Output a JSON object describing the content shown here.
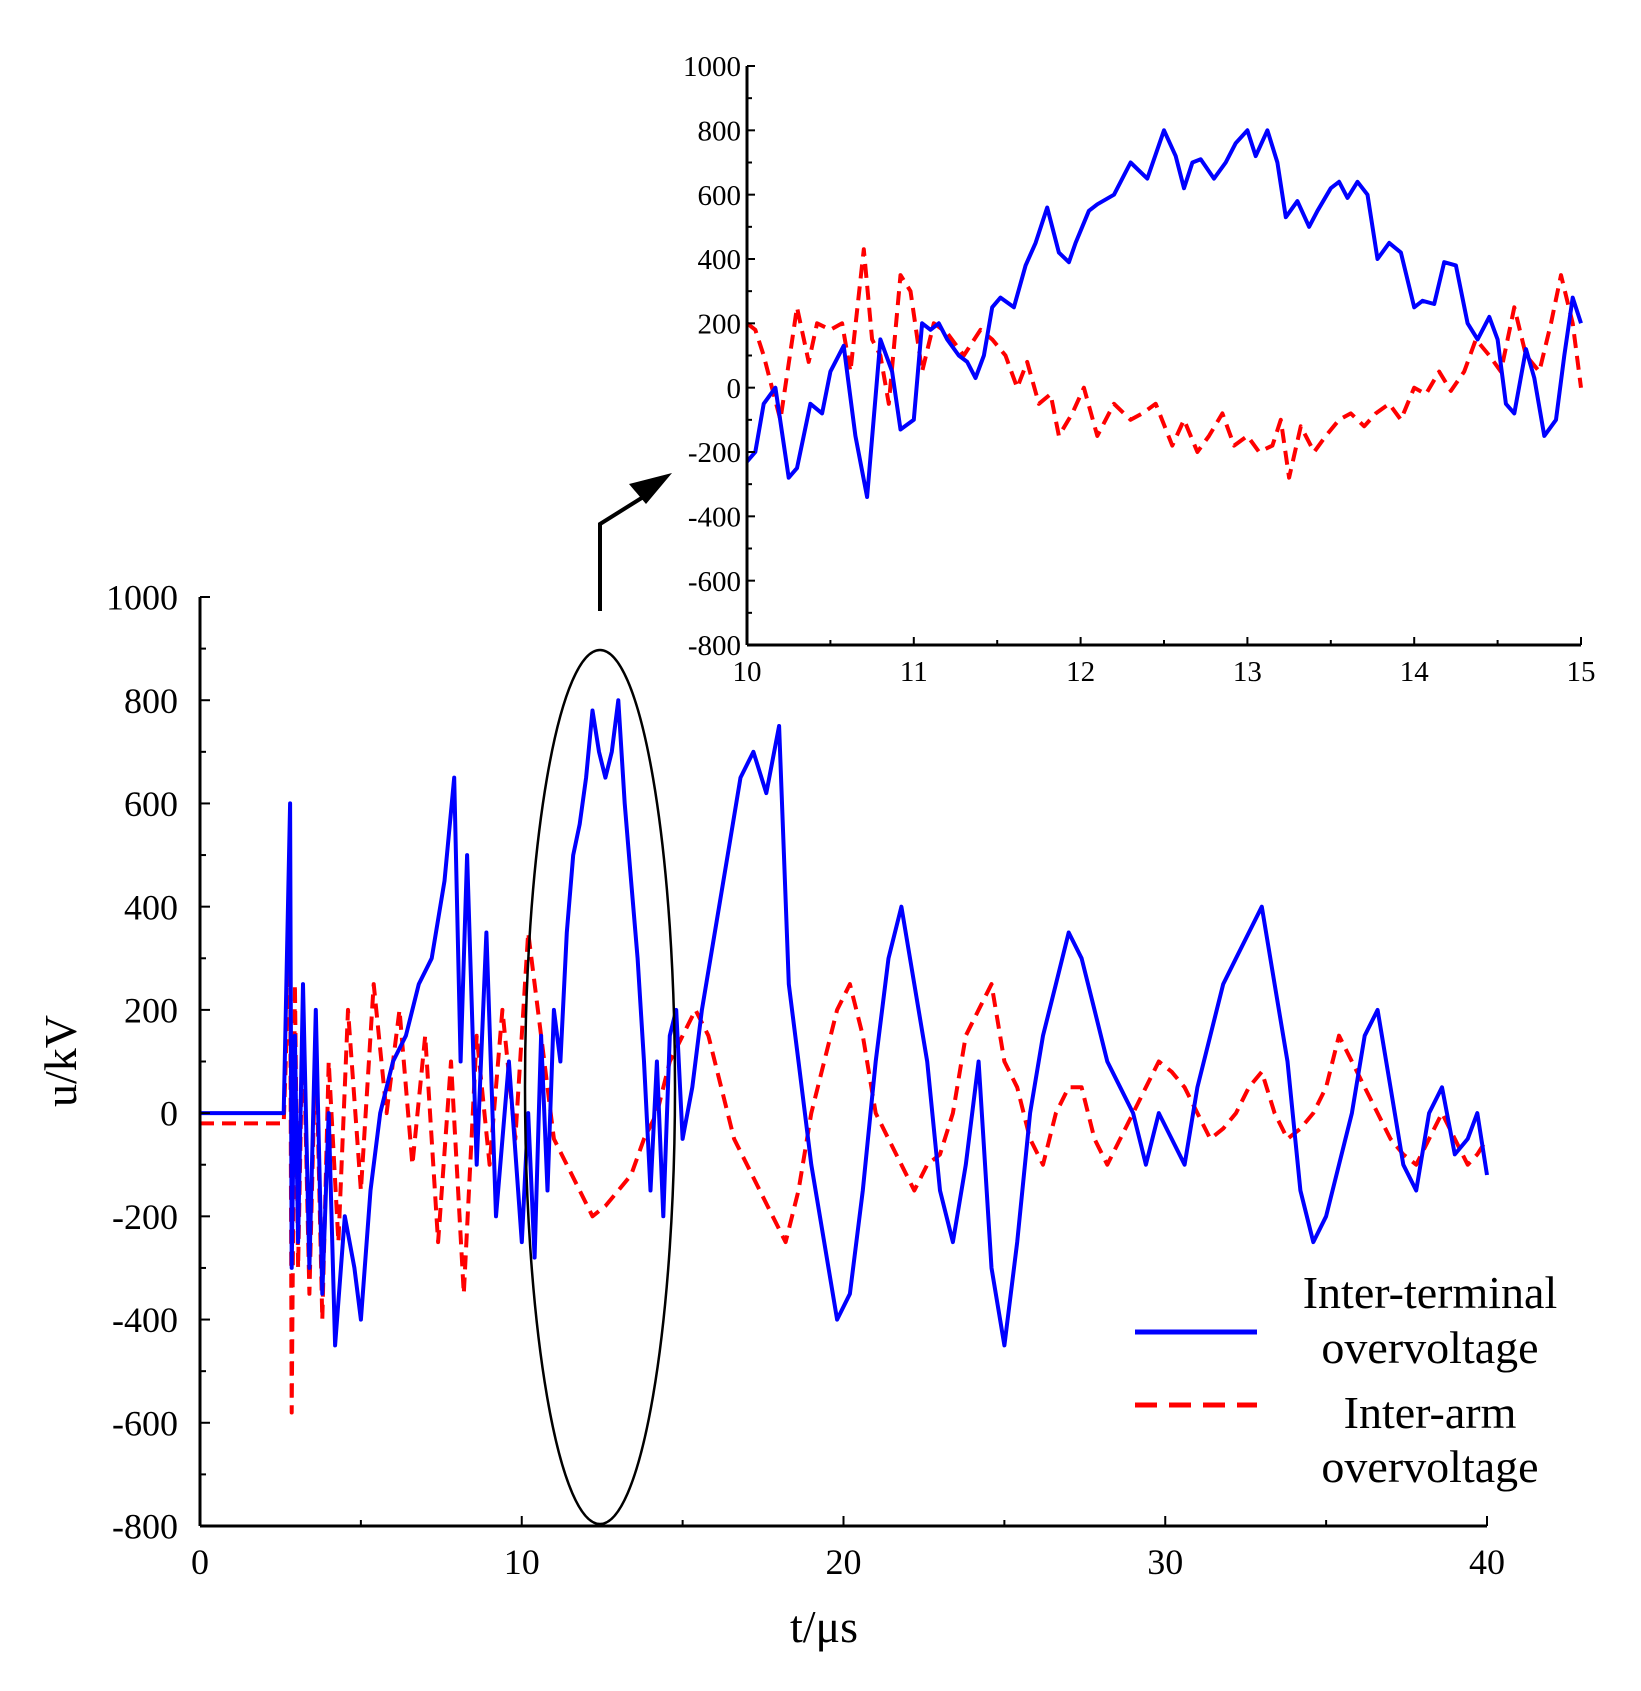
{
  "chart_data": [
    {
      "id": "main",
      "type": "line",
      "xlabel": "t/μs",
      "ylabel": "u/kV",
      "xlim": [
        0,
        40
      ],
      "ylim": [
        -800,
        1000
      ],
      "xticks": [
        "0",
        "10",
        "20",
        "30",
        "40"
      ],
      "yticks": [
        "1000",
        "800",
        "600",
        "400",
        "200",
        "0",
        "-200",
        "-400",
        "-600",
        "-800"
      ],
      "xtick_values": [
        0,
        10,
        20,
        30,
        40
      ],
      "ytick_values": [
        1000,
        800,
        600,
        400,
        200,
        0,
        -200,
        -400,
        -600,
        -800
      ],
      "legend_placement": "bottom-right",
      "series": [
        {
          "name": "Inter-terminal overvoltage",
          "style": "solid",
          "color": "#0000ff",
          "x": [
            0,
            2.6,
            2.8,
            2.85,
            2.95,
            3.05,
            3.2,
            3.4,
            3.6,
            3.8,
            4.0,
            4.2,
            4.5,
            4.8,
            5.0,
            5.3,
            5.6,
            6.0,
            6.4,
            6.8,
            7.2,
            7.6,
            7.9,
            8.1,
            8.3,
            8.6,
            8.9,
            9.2,
            9.6,
            10.0,
            10.2,
            10.4,
            10.6,
            10.8,
            11.0,
            11.2,
            11.4,
            11.6,
            11.8,
            12.0,
            12.2,
            12.4,
            12.6,
            12.8,
            13.0,
            13.2,
            13.4,
            13.6,
            13.8,
            14.0,
            14.2,
            14.4,
            14.6,
            14.8,
            15.0,
            15.3,
            15.6,
            16.0,
            16.4,
            16.8,
            17.2,
            17.6,
            18.0,
            18.3,
            18.6,
            19.0,
            19.4,
            19.8,
            20.2,
            20.6,
            21.0,
            21.4,
            21.8,
            22.2,
            22.6,
            23.0,
            23.4,
            23.8,
            24.2,
            24.6,
            25.0,
            25.4,
            25.8,
            26.2,
            26.6,
            27.0,
            27.4,
            27.8,
            28.2,
            28.6,
            29.0,
            29.4,
            29.8,
            30.2,
            30.6,
            31.0,
            31.4,
            31.8,
            32.2,
            32.6,
            33.0,
            33.4,
            33.8,
            34.2,
            34.6,
            35.0,
            35.4,
            35.8,
            36.2,
            36.6,
            37.0,
            37.4,
            37.8,
            38.2,
            38.6,
            39.0,
            39.4,
            39.7,
            40.0
          ],
          "y": [
            0,
            0,
            600,
            -300,
            150,
            -250,
            250,
            -300,
            200,
            -350,
            0,
            -450,
            -200,
            -300,
            -400,
            -150,
            0,
            100,
            150,
            250,
            300,
            450,
            650,
            100,
            500,
            -100,
            350,
            -200,
            100,
            -250,
            0,
            -280,
            150,
            -150,
            200,
            100,
            350,
            500,
            560,
            650,
            780,
            700,
            650,
            700,
            800,
            600,
            450,
            300,
            100,
            -150,
            100,
            -200,
            150,
            200,
            -50,
            50,
            200,
            350,
            500,
            650,
            700,
            620,
            750,
            250,
            100,
            -100,
            -250,
            -400,
            -350,
            -150,
            100,
            300,
            400,
            250,
            100,
            -150,
            -250,
            -100,
            100,
            -300,
            -450,
            -250,
            0,
            150,
            250,
            350,
            300,
            200,
            100,
            50,
            0,
            -100,
            0,
            -50,
            -100,
            50,
            150,
            250,
            300,
            350,
            400,
            250,
            100,
            -150,
            -250,
            -200,
            -100,
            0,
            150,
            200,
            50,
            -100,
            -150,
            0,
            50,
            -80,
            -50,
            0,
            -120
          ]
        },
        {
          "name": "Inter-arm overvoltage",
          "style": "dashed",
          "color": "#ff0000",
          "x": [
            0,
            2.6,
            2.8,
            2.85,
            2.95,
            3.05,
            3.2,
            3.4,
            3.6,
            3.8,
            4.0,
            4.3,
            4.6,
            5.0,
            5.4,
            5.8,
            6.2,
            6.6,
            7.0,
            7.4,
            7.8,
            8.2,
            8.6,
            9.0,
            9.4,
            9.8,
            10.2,
            10.6,
            11.0,
            11.4,
            11.8,
            12.2,
            12.6,
            13.0,
            13.4,
            13.8,
            14.2,
            14.6,
            15.0,
            15.4,
            15.8,
            16.2,
            16.6,
            17.0,
            17.4,
            17.8,
            18.2,
            18.6,
            19.0,
            19.4,
            19.8,
            20.2,
            20.6,
            21.0,
            21.4,
            21.8,
            22.2,
            22.6,
            23.0,
            23.4,
            23.8,
            24.2,
            24.6,
            25.0,
            25.4,
            25.8,
            26.2,
            26.6,
            27.0,
            27.4,
            27.8,
            28.2,
            28.6,
            29.0,
            29.4,
            29.8,
            30.2,
            30.6,
            31.0,
            31.4,
            31.8,
            32.2,
            32.6,
            33.0,
            33.4,
            33.8,
            34.2,
            34.6,
            35.0,
            35.4,
            35.8,
            36.2,
            36.6,
            37.0,
            37.4,
            37.8,
            38.2,
            38.6,
            39.0,
            39.4,
            39.7,
            40.0
          ],
          "y": [
            -20,
            -20,
            350,
            -580,
            250,
            -300,
            200,
            -350,
            150,
            -400,
            100,
            -250,
            200,
            -150,
            250,
            0,
            200,
            -100,
            150,
            -250,
            100,
            -350,
            150,
            -100,
            200,
            -50,
            350,
            150,
            -50,
            -100,
            -150,
            -200,
            -180,
            -150,
            -120,
            -50,
            0,
            100,
            150,
            200,
            150,
            50,
            -50,
            -100,
            -150,
            -200,
            -250,
            -150,
            0,
            100,
            200,
            250,
            150,
            0,
            -50,
            -100,
            -150,
            -100,
            -80,
            0,
            150,
            200,
            250,
            100,
            50,
            -50,
            -100,
            0,
            50,
            50,
            -50,
            -100,
            -50,
            0,
            50,
            100,
            80,
            50,
            0,
            -50,
            -30,
            0,
            50,
            80,
            0,
            -50,
            -30,
            0,
            50,
            150,
            100,
            50,
            0,
            -50,
            -80,
            -100,
            -50,
            0,
            -50,
            -100,
            -80,
            -50
          ]
        }
      ]
    },
    {
      "id": "inset",
      "type": "line",
      "xlabel": "",
      "ylabel": "",
      "xlim": [
        10,
        15
      ],
      "ylim": [
        -800,
        1000
      ],
      "xticks": [
        "10",
        "11",
        "12",
        "13",
        "14",
        "15"
      ],
      "yticks": [
        "1000",
        "800",
        "600",
        "400",
        "200",
        "0",
        "-200",
        "-400",
        "-600",
        "-800"
      ],
      "xtick_values": [
        10,
        11,
        12,
        13,
        14,
        15
      ],
      "ytick_values": [
        1000,
        800,
        600,
        400,
        200,
        0,
        -200,
        -400,
        -600,
        -800
      ],
      "series": [
        {
          "name": "Inter-terminal overvoltage",
          "style": "solid",
          "color": "#0000ff",
          "x": [
            10.0,
            10.05,
            10.1,
            10.17,
            10.25,
            10.3,
            10.38,
            10.45,
            10.5,
            10.58,
            10.65,
            10.72,
            10.8,
            10.87,
            10.92,
            11.0,
            11.05,
            11.1,
            11.15,
            11.2,
            11.27,
            11.32,
            11.37,
            11.42,
            11.47,
            11.52,
            11.6,
            11.67,
            11.73,
            11.8,
            11.87,
            11.93,
            11.97,
            12.05,
            12.1,
            12.2,
            12.3,
            12.4,
            12.5,
            12.57,
            12.62,
            12.67,
            12.72,
            12.8,
            12.87,
            12.93,
            13.0,
            13.05,
            13.12,
            13.18,
            13.23,
            13.3,
            13.37,
            13.42,
            13.5,
            13.55,
            13.6,
            13.66,
            13.72,
            13.78,
            13.85,
            13.92,
            14.0,
            14.05,
            14.12,
            14.18,
            14.25,
            14.32,
            14.38,
            14.45,
            14.5,
            14.55,
            14.6,
            14.67,
            14.72,
            14.78,
            14.85,
            14.9,
            14.95,
            15.0
          ],
          "y": [
            -230,
            -200,
            -50,
            0,
            -280,
            -250,
            -50,
            -80,
            50,
            130,
            -150,
            -340,
            150,
            50,
            -130,
            -100,
            200,
            180,
            200,
            150,
            100,
            80,
            30,
            100,
            250,
            280,
            250,
            380,
            450,
            560,
            420,
            390,
            450,
            550,
            570,
            600,
            700,
            650,
            800,
            720,
            620,
            700,
            710,
            650,
            700,
            760,
            800,
            720,
            800,
            700,
            530,
            580,
            500,
            550,
            620,
            640,
            590,
            640,
            600,
            400,
            450,
            420,
            250,
            270,
            260,
            390,
            380,
            200,
            150,
            220,
            150,
            -50,
            -80,
            120,
            30,
            -150,
            -100,
            100,
            280,
            200
          ]
        },
        {
          "name": "Inter-arm overvoltage",
          "style": "dashed",
          "color": "#ff0000",
          "x": [
            10.0,
            10.05,
            10.1,
            10.15,
            10.2,
            10.3,
            10.37,
            10.42,
            10.5,
            10.57,
            10.62,
            10.7,
            10.75,
            10.8,
            10.85,
            10.92,
            10.98,
            11.05,
            11.12,
            11.2,
            11.3,
            11.4,
            11.47,
            11.55,
            11.62,
            11.68,
            11.75,
            11.82,
            11.87,
            11.95,
            12.02,
            12.1,
            12.2,
            12.3,
            12.37,
            12.45,
            12.55,
            12.62,
            12.7,
            12.77,
            12.85,
            12.92,
            13.0,
            13.07,
            13.15,
            13.2,
            13.25,
            13.32,
            13.4,
            13.47,
            13.55,
            13.62,
            13.7,
            13.77,
            13.85,
            13.92,
            14.0,
            14.07,
            14.15,
            14.22,
            14.3,
            14.37,
            14.45,
            14.52,
            14.6,
            14.67,
            14.75,
            14.82,
            14.88,
            14.95,
            15.0
          ],
          "y": [
            200,
            180,
            100,
            0,
            -100,
            250,
            80,
            200,
            180,
            200,
            50,
            430,
            150,
            100,
            -50,
            350,
            300,
            50,
            200,
            170,
            100,
            180,
            150,
            100,
            0,
            80,
            -50,
            -20,
            -150,
            -80,
            0,
            -150,
            -50,
            -100,
            -80,
            -50,
            -180,
            -100,
            -200,
            -150,
            -80,
            -180,
            -150,
            -200,
            -180,
            -100,
            -280,
            -120,
            -200,
            -150,
            -100,
            -80,
            -120,
            -80,
            -50,
            -100,
            0,
            -20,
            50,
            -10,
            50,
            150,
            100,
            50,
            250,
            100,
            50,
            200,
            350,
            200,
            0
          ]
        }
      ]
    }
  ]
}
